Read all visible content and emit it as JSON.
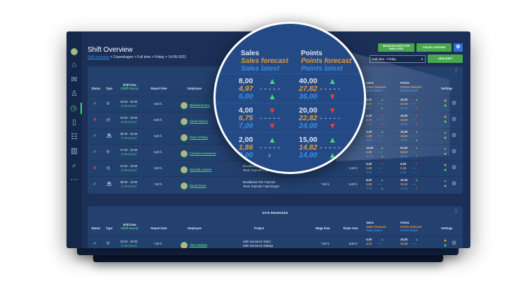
{
  "colors": {
    "accent": "#4fd17a",
    "forecast": "#e09a3e",
    "latest": "#3b8de0",
    "down": "#e0403a",
    "bg": "#1b2f57"
  },
  "sidebar": {
    "items": [
      {
        "icon": "home-icon",
        "glyph": "⌂"
      },
      {
        "icon": "mail-icon",
        "glyph": "✉"
      },
      {
        "icon": "stamp-icon",
        "glyph": "♙"
      },
      {
        "icon": "shift-clock-icon",
        "glyph": "◷",
        "active": true
      },
      {
        "icon": "clipboard-icon",
        "glyph": "▯"
      },
      {
        "icon": "team-icon",
        "glyph": "☷"
      },
      {
        "icon": "building-icon",
        "glyph": "▥"
      },
      {
        "icon": "search-icon",
        "glyph": "⌕"
      },
      {
        "icon": "more-icon",
        "glyph": "⋯"
      }
    ]
  },
  "header": {
    "title": "Shift Overview",
    "breadcrumb_link": "Shift overview",
    "breadcrumb_rest": " > Copenhagen > Full time > Friday > 14-05-2021"
  },
  "toolbar": {
    "register": "REGISTER SHIFT FOR EMPLOYEE",
    "focus": "FOCUS: STAFFING",
    "select": "Full time - Friday",
    "view": "VIEW SHIFT"
  },
  "columns": {
    "status": "Status",
    "type": "Type",
    "shift": "Shift time",
    "shift_sub": "(Shift hours)",
    "report": "Report time",
    "employee": "Employee",
    "project": "Project",
    "wage": "Wage time",
    "dialer": "Dialer time",
    "sales": "Sales",
    "sales_f": "Sales forecast",
    "sales_l": "Sales latest",
    "points": "Points",
    "points_f": "Points forecast",
    "points_l": "Points latest",
    "settings": "Settings"
  },
  "rows": [
    {
      "status": "ok",
      "type": "refresh",
      "shift": "16:00 - 20:00",
      "hours": "(3,83 hours)",
      "report": "3,83 h.",
      "employee": "Michael Evans",
      "project": [
        "",
        ""
      ],
      "wage": "",
      "dialer": "",
      "sales": [
        "8,00",
        "4,97",
        "6,00"
      ],
      "sa": [
        "up",
        "up"
      ],
      "points": [
        "40,00",
        "27,82",
        "36,00"
      ],
      "pa": [
        "up",
        "down"
      ],
      "dots": [
        "orange",
        "green"
      ]
    },
    {
      "status": "fail",
      "type": "clock",
      "shift": "12:00 - 19:00",
      "hours": "(6,50 hours)",
      "report": "6,50 h.",
      "employee": "Sarah Garcia",
      "project": [
        "",
        ""
      ],
      "wage": "",
      "dialer": "",
      "sales": [
        "4,00",
        "6,75",
        "7,00"
      ],
      "sa": [
        "down",
        "down"
      ],
      "points": [
        "20,00",
        "22,82",
        "24,00"
      ],
      "pa": [
        "down",
        "down"
      ],
      "dots": [
        "orange",
        "green"
      ]
    },
    {
      "status": "ok",
      "type": "beach",
      "shift": "08:30 - 16:30",
      "hours": "(7,50 hours)",
      "report": "5,50 h.",
      "employee": "Peter O'Shea",
      "project": [
        "",
        ""
      ],
      "wage": "",
      "dialer": "",
      "sales": [
        "2,00",
        "1,86",
        "2,00"
      ],
      "sa": [
        "up",
        "right"
      ],
      "points": [
        "15,00",
        "14,82",
        "14,00"
      ],
      "pa": [
        "up",
        "up"
      ],
      "dots": [
        "grey",
        "green"
      ]
    },
    {
      "status": "ok",
      "type": "refresh",
      "shift": "17:00 - 23:00",
      "hours": "(5,50 hours)",
      "report": "5,00 h.",
      "employee": "Caroline Svensson",
      "project": [
        "",
        ""
      ],
      "wage": "",
      "dialer": "",
      "sales": [
        "14,00",
        "9,85",
        "10,00"
      ],
      "sa": [
        "up",
        "up"
      ],
      "points": [
        "64,00",
        "58,62",
        "68,00"
      ],
      "pa": [
        "up",
        "down"
      ],
      "dots": [
        "grey",
        "green"
      ]
    },
    {
      "status": "fail",
      "type": "clock",
      "shift": "14:00 - 18:00",
      "hours": "(3,83 hours)",
      "report": "3,83 h.",
      "employee": "Hannah Lawren",
      "project": [
        "Broadband Tele Topmark",
        "Team Topmark Copenhagen"
      ],
      "wage": "",
      "dialer": "3,33 h.",
      "sales": [
        "0,00",
        "1,58",
        "0,00"
      ],
      "sa": [
        "down",
        "right"
      ],
      "points": [
        "0,00",
        "5,36",
        "0,00"
      ],
      "pa": [
        "down",
        "right"
      ],
      "dots": [
        "orange",
        "green"
      ]
    },
    {
      "status": "ok",
      "type": "beach",
      "shift": "08:00 - 16:00",
      "hours": "(7,50 hours)",
      "report": "7,50 h.",
      "employee": "David Gorm",
      "project": [
        "Broadband Tele Topmark",
        "Team Topmark Copenhagen"
      ],
      "wage": "7,50 h.",
      "dialer": "6,00 h.",
      "sales": [
        "8,00",
        "3,58",
        "3,00"
      ],
      "sa": [
        "up",
        "up"
      ],
      "points": [
        "40,00",
        "32,52",
        "24,00"
      ],
      "pa": [
        "up",
        "down"
      ],
      "dots": [
        "grey",
        "green"
      ]
    }
  ],
  "card2": {
    "title": "SAFE INSURANCE",
    "row": {
      "status": "ok",
      "type": "refresh",
      "shift": "10:00 - 18:00",
      "hours": "(7,50 hours)",
      "report": "7,50 h.",
      "employee": "Tim Lewisen",
      "project": [
        "Safe Insurance Sales",
        "Safe Insurance Malaga"
      ],
      "wage": "7,50 h.",
      "dialer": "6,50 h.",
      "sales": [
        "5,00",
        "4,23",
        ""
      ],
      "sa": [
        "up",
        ""
      ],
      "points": [
        "36,00",
        "22,58",
        ""
      ],
      "pa": [
        "up",
        ""
      ],
      "dots": [
        "orange",
        "green"
      ]
    }
  },
  "magnifier": {
    "rows": [
      0,
      1,
      2
    ]
  }
}
